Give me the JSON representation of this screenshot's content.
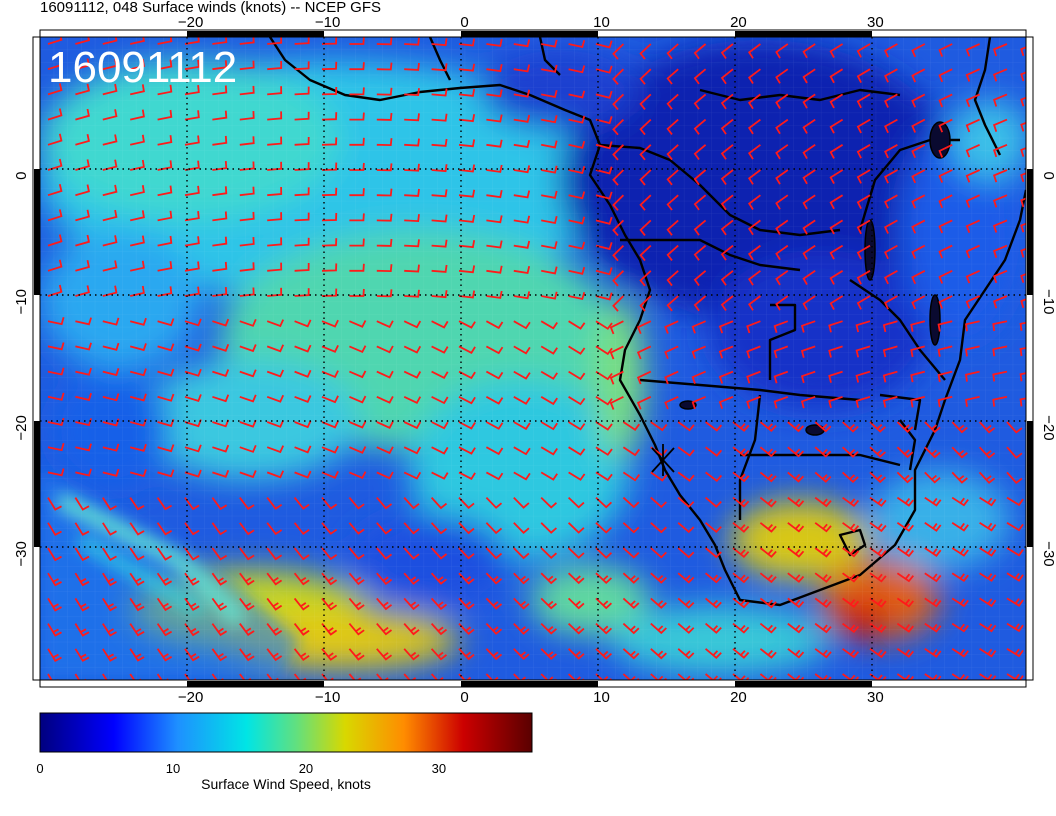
{
  "header": {
    "title": "16091112, 048 Surface winds (knots) -- NCEP GFS"
  },
  "map": {
    "stamp": "16091112",
    "lon_range": [
      -31,
      41
    ],
    "lat_range": [
      -40,
      11
    ],
    "lon_ticks": [
      -20,
      -10,
      0,
      10,
      20,
      30
    ],
    "lat_ticks": [
      0,
      -10,
      -20,
      -30
    ],
    "lon_tick_labels": [
      "−20",
      "−10",
      "0",
      "10",
      "20",
      "30"
    ],
    "lat_tick_labels": [
      "0",
      "−10",
      "−20",
      "−30"
    ],
    "gridlines": "dotted",
    "overlay": "wind barbs",
    "barb_color": "#ff1a1a",
    "coastline_color": "#000000"
  },
  "colorbar": {
    "label": "Surface Wind Speed, knots",
    "range": [
      0,
      37
    ],
    "ticks": [
      "0",
      "10",
      "20",
      "30"
    ],
    "colors": [
      "#00007f",
      "#0000ff",
      "#1e90ff",
      "#00e5e5",
      "#60e080",
      "#d8d800",
      "#ff8c00",
      "#cc0000",
      "#5a0000"
    ]
  }
}
